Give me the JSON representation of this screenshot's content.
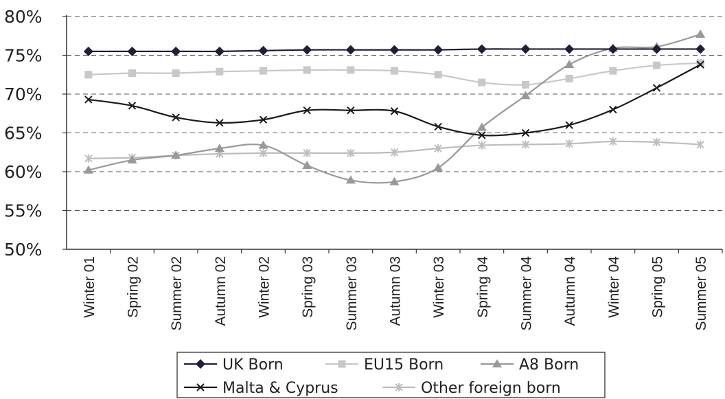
{
  "chart_data": {
    "type": "line",
    "title": "",
    "xlabel": "",
    "ylabel": "",
    "ylim": [
      50,
      80
    ],
    "y_ticks": [
      "50%",
      "55%",
      "60%",
      "65%",
      "70%",
      "75%",
      "80%"
    ],
    "grid": "horizontal dashed",
    "legend_position": "bottom",
    "categories": [
      "Winter 01",
      "Spring 02",
      "Summer 02",
      "Autumn 02",
      "Winter 02",
      "Spring 03",
      "Summer 03",
      "Autumn 03",
      "Winter 03",
      "Spring 04",
      "Summer 04",
      "Autumn 04",
      "Winter 04",
      "Spring 05",
      "Summer 05"
    ],
    "series": [
      {
        "name": "UK Born",
        "color": "#1f1f3a",
        "marker": "diamond",
        "values": [
          75.5,
          75.5,
          75.5,
          75.5,
          75.6,
          75.7,
          75.7,
          75.7,
          75.7,
          75.8,
          75.8,
          75.8,
          75.8,
          75.8,
          75.8
        ]
      },
      {
        "name": "EU15 Born",
        "color": "#c8c8c8",
        "marker": "square",
        "values": [
          72.5,
          72.7,
          72.7,
          72.9,
          73.0,
          73.1,
          73.1,
          73.0,
          72.5,
          71.5,
          71.2,
          72.0,
          73.0,
          73.7,
          74.0
        ]
      },
      {
        "name": "A8 Born",
        "color": "#999999",
        "marker": "triangle",
        "values": [
          60.2,
          61.5,
          62.1,
          63.0,
          63.4,
          60.8,
          58.9,
          58.7,
          60.5,
          65.7,
          69.8,
          73.8,
          75.9,
          76.1,
          77.7
        ]
      },
      {
        "name": "Malta & Cyprus",
        "color": "#1a1a1a",
        "marker": "x",
        "values": [
          69.3,
          68.5,
          67.0,
          66.3,
          66.7,
          67.9,
          67.9,
          67.8,
          65.8,
          64.7,
          65.0,
          66.0,
          68.0,
          70.8,
          73.8
        ]
      },
      {
        "name": "Other foreign born",
        "color": "#bdbdbd",
        "marker": "star",
        "values": [
          61.7,
          61.8,
          62.1,
          62.3,
          62.4,
          62.4,
          62.4,
          62.5,
          63.0,
          63.4,
          63.5,
          63.6,
          63.9,
          63.8,
          63.5
        ]
      }
    ]
  }
}
